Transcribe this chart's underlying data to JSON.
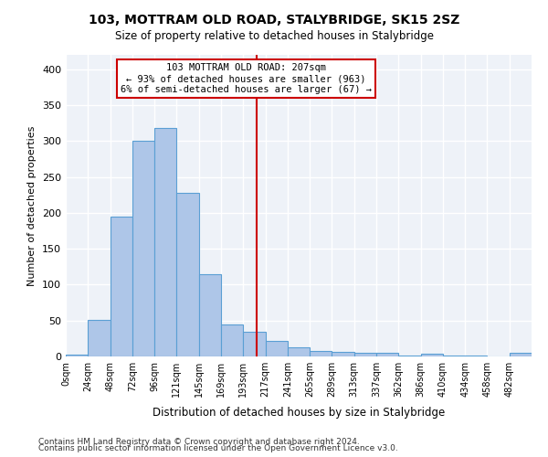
{
  "title": "103, MOTTRAM OLD ROAD, STALYBRIDGE, SK15 2SZ",
  "subtitle": "Size of property relative to detached houses in Stalybridge",
  "xlabel": "Distribution of detached houses by size in Stalybridge",
  "ylabel": "Number of detached properties",
  "bar_color": "#aec6e8",
  "bar_edge_color": "#5a9fd4",
  "background_color": "#eef2f8",
  "grid_color": "#ffffff",
  "annotation_box_color": "#cc0000",
  "vline_color": "#cc0000",
  "bin_starts": [
    0,
    24,
    48,
    72,
    96,
    120,
    144,
    168,
    192,
    216,
    240,
    264,
    288,
    312,
    336,
    360,
    384,
    408,
    432,
    456,
    480
  ],
  "bin_labels": [
    "0sqm",
    "24sqm",
    "48sqm",
    "72sqm",
    "96sqm",
    "121sqm",
    "145sqm",
    "169sqm",
    "193sqm",
    "217sqm",
    "241sqm",
    "265sqm",
    "289sqm",
    "313sqm",
    "337sqm",
    "362sqm",
    "386sqm",
    "410sqm",
    "434sqm",
    "458sqm",
    "482sqm"
  ],
  "counts": [
    3,
    51,
    195,
    300,
    318,
    228,
    114,
    45,
    34,
    22,
    13,
    8,
    6,
    5,
    5,
    1,
    4,
    1,
    1,
    0,
    5
  ],
  "bin_width": 24,
  "property_size": 207,
  "annotation_text": "103 MOTTRAM OLD ROAD: 207sqm\n← 93% of detached houses are smaller (963)\n6% of semi-detached houses are larger (67) →",
  "footnote1": "Contains HM Land Registry data © Crown copyright and database right 2024.",
  "footnote2": "Contains public sector information licensed under the Open Government Licence v3.0.",
  "ylim": [
    0,
    420
  ],
  "yticks": [
    0,
    50,
    100,
    150,
    200,
    250,
    300,
    350,
    400
  ]
}
